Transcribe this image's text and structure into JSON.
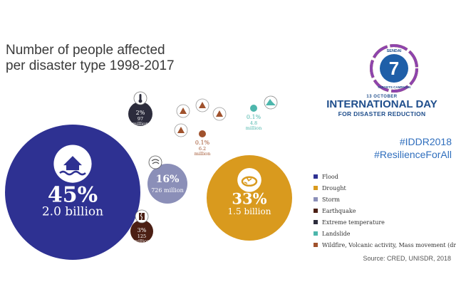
{
  "title_line1": "Number of people affected",
  "title_line2": "per disaster type 1998-2017",
  "chart_data": {
    "type": "bubble",
    "title": "Number of people affected per disaster type 1998-2017",
    "categories": [
      "Flood",
      "Drought",
      "Storm",
      "Earthquake",
      "Extreme temperature",
      "Landslide",
      "Wildfire, Volcanic activity, Mass movement (dry)"
    ],
    "values": [
      {
        "category": "Flood",
        "percent": "45%",
        "people": "2.0 billion",
        "color": "#2e3192",
        "icon": "flooded-house-icon"
      },
      {
        "category": "Drought",
        "percent": "33%",
        "people": "1.5 billion",
        "color": "#d99a1e",
        "icon": "dry-soil-icon"
      },
      {
        "category": "Storm",
        "percent": "16%",
        "people": "726 million",
        "color": "#8b8fb8",
        "icon": "storm-icon"
      },
      {
        "category": "Earthquake",
        "percent": "3%",
        "people": "125 million",
        "color": "#4b1f14",
        "icon": "cracked-building-icon"
      },
      {
        "category": "Extreme temperature",
        "percent": "2%",
        "people": "97 million",
        "color": "#2c2c3c",
        "icon": "thermometer-icon"
      },
      {
        "category": "Landslide",
        "percent": "0.1%",
        "people": "4.8 million",
        "color": "#4db6ac",
        "icon": "landslide-icon"
      },
      {
        "category": "Wildfire, Volcanic activity, Mass movement (dry)",
        "percent": "0.1%",
        "people": "6.2 million",
        "color": "#a0522d",
        "icon": "wildfire-volcano-mass-movement-icon"
      }
    ],
    "legend_position": "right"
  },
  "badge": {
    "top_text": "SENDAI",
    "number": "7",
    "bottom_text": "TARGETS CAMPAIGN"
  },
  "day": {
    "date": "13 OCTOBER",
    "headline": "INTERNATIONAL DAY",
    "subhead": "FOR DISASTER REDUCTION"
  },
  "hashtags": [
    "#IDDR2018",
    "#ResilienceForAll"
  ],
  "source": "Source: CRED, UNISDR, 2018",
  "colors": {
    "title": "#3a3a3a",
    "blue_text": "#1f4e8c"
  }
}
